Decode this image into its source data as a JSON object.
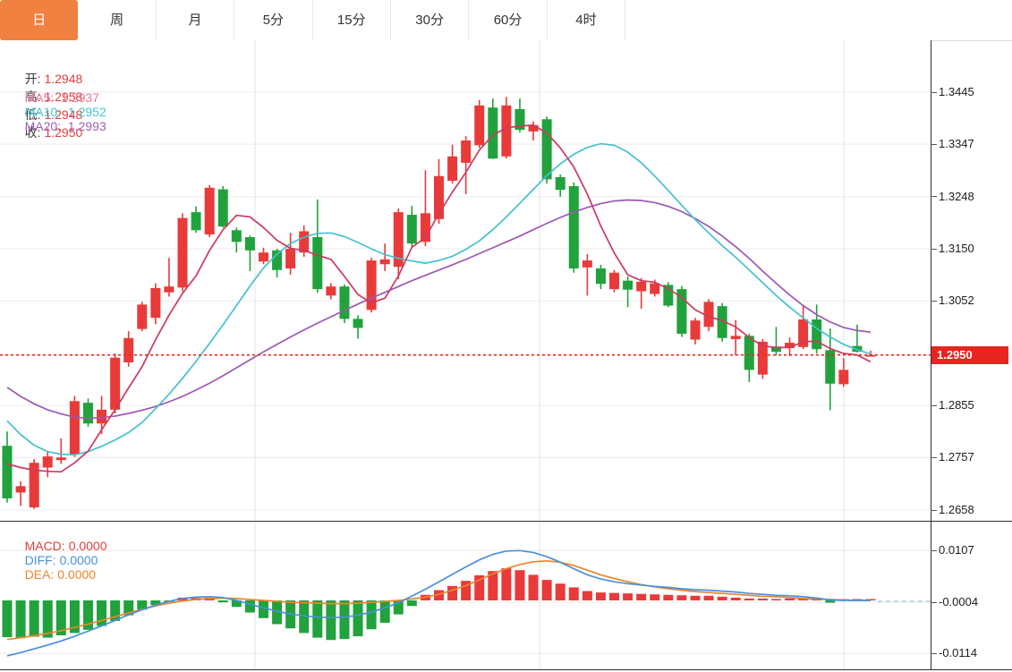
{
  "tabs": [
    {
      "label": "日",
      "active": true
    },
    {
      "label": "周",
      "active": false
    },
    {
      "label": "月",
      "active": false
    },
    {
      "label": "5分",
      "active": false
    },
    {
      "label": "15分",
      "active": false
    },
    {
      "label": "30分",
      "active": false
    },
    {
      "label": "60分",
      "active": false
    },
    {
      "label": "4时",
      "active": false
    }
  ],
  "quote": {
    "open_label": "开:",
    "open": "1.2948",
    "high_label": "高:",
    "high": "1.2958",
    "low_label": "低:",
    "low": "1.2948",
    "close_label": "收:",
    "close": "1.2950"
  },
  "ma_header": {
    "ma5_label": "MA5:",
    "ma5": "1.2937",
    "ma10_label": "MA10:",
    "ma10": "1.2952",
    "ma20_label": "MA20:",
    "ma20": "1.2993"
  },
  "macd_header": {
    "macd_label": "MACD:",
    "macd": "0.0000",
    "diff_label": "DIFF:",
    "diff": "0.0000",
    "dea_label": "DEA:",
    "dea": "0.0000"
  },
  "current_price_badge": "1.2950",
  "colors": {
    "tab_active_bg": "#f08140",
    "up": "#e93a3a",
    "down": "#21a23c",
    "ma5_line": "#cc3a60",
    "ma10_line": "#45c0cf",
    "ma20_line": "#9d58b4",
    "ma5_text": "#e8799a",
    "ma10_text": "#43c5cf",
    "ma20_text": "#a05fb5",
    "quote_value": "#e0403a",
    "diff_line": "#4a90d9",
    "dea_line": "#e8862e",
    "badge_bg": "#e8251f",
    "dotted_price_line": "#ee2222",
    "dashed_tail": "#a8cdea",
    "grid": "#ececec"
  },
  "chart_data": {
    "type": "candlestick_with_macd",
    "description": "Daily FX candlestick chart (Chinese convention: red=up, green=down) with MA5/MA10/MA20 overlays and MACD sub-panel",
    "main": {
      "y_ticks": [
        1.3445,
        1.3347,
        1.3248,
        1.315,
        1.3052,
        1.2855,
        1.2757,
        1.2658
      ],
      "ylim": [
        1.2601,
        1.3543
      ],
      "current_price": 1.295,
      "time_gridlines_x": [
        285,
        603,
        943
      ],
      "ohlc": [
        [
          1.2779,
          1.2806,
          1.2672,
          1.268
        ],
        [
          1.2691,
          1.2712,
          1.2666,
          1.2703
        ],
        [
          1.2663,
          1.2754,
          1.266,
          1.2747
        ],
        [
          1.2738,
          1.2768,
          1.272,
          1.2759
        ],
        [
          1.2752,
          1.2793,
          1.2745,
          1.2757
        ],
        [
          1.2763,
          1.2873,
          1.2758,
          1.2863
        ],
        [
          1.286,
          1.2868,
          1.2815,
          1.2821
        ],
        [
          1.2821,
          1.2873,
          1.2801,
          1.2847
        ],
        [
          1.2847,
          1.2953,
          1.284,
          1.2945
        ],
        [
          1.2936,
          1.2995,
          1.2928,
          1.2982
        ],
        [
          1.2999,
          1.305,
          1.2995,
          1.3045
        ],
        [
          1.302,
          1.3085,
          1.3008,
          1.3076
        ],
        [
          1.3068,
          1.3133,
          1.306,
          1.3079
        ],
        [
          1.3077,
          1.3217,
          1.307,
          1.3208
        ],
        [
          1.3219,
          1.323,
          1.318,
          1.3185
        ],
        [
          1.3177,
          1.327,
          1.3172,
          1.3265
        ],
        [
          1.3262,
          1.3268,
          1.319,
          1.3192
        ],
        [
          1.3185,
          1.319,
          1.3143,
          1.3163
        ],
        [
          1.3172,
          1.3175,
          1.3108,
          1.3147
        ],
        [
          1.3126,
          1.3152,
          1.3121,
          1.3143
        ],
        [
          1.3147,
          1.315,
          1.3096,
          1.311
        ],
        [
          1.3113,
          1.318,
          1.3101,
          1.315
        ],
        [
          1.3143,
          1.3194,
          1.3135,
          1.3183
        ],
        [
          1.3172,
          1.3243,
          1.3067,
          1.3074
        ],
        [
          1.3062,
          1.3085,
          1.3055,
          1.3079
        ],
        [
          1.3079,
          1.3083,
          1.301,
          1.3018
        ],
        [
          1.3018,
          1.3025,
          1.2981,
          1.3001
        ],
        [
          1.3035,
          1.3133,
          1.303,
          1.3128
        ],
        [
          1.3121,
          1.316,
          1.3108,
          1.313
        ],
        [
          1.3116,
          1.3226,
          1.3093,
          1.3219
        ],
        [
          1.3214,
          1.3231,
          1.3152,
          1.316
        ],
        [
          1.3163,
          1.3298,
          1.3155,
          1.3217
        ],
        [
          1.3206,
          1.3319,
          1.3197,
          1.3287
        ],
        [
          1.3278,
          1.3346,
          1.3273,
          1.3324
        ],
        [
          1.3312,
          1.3362,
          1.3253,
          1.3354
        ],
        [
          1.3345,
          1.343,
          1.334,
          1.342
        ],
        [
          1.3416,
          1.3433,
          1.3319,
          1.332
        ],
        [
          1.3324,
          1.3436,
          1.332,
          1.342
        ],
        [
          1.3413,
          1.3433,
          1.3369,
          1.3374
        ],
        [
          1.3371,
          1.339,
          1.3354,
          1.3383
        ],
        [
          1.3394,
          1.3399,
          1.3273,
          1.3281
        ],
        [
          1.3285,
          1.329,
          1.3248,
          1.3261
        ],
        [
          1.3268,
          1.3275,
          1.3105,
          1.3113
        ],
        [
          1.3115,
          1.314,
          1.3062,
          1.3128
        ],
        [
          1.3113,
          1.312,
          1.3074,
          1.3084
        ],
        [
          1.3074,
          1.311,
          1.3068,
          1.3105
        ],
        [
          1.309,
          1.3098,
          1.304,
          1.3073
        ],
        [
          1.307,
          1.3095,
          1.3037,
          1.3088
        ],
        [
          1.3065,
          1.3092,
          1.306,
          1.3085
        ],
        [
          1.3082,
          1.3087,
          1.304,
          1.3043
        ],
        [
          1.3074,
          1.308,
          1.2984,
          1.299
        ],
        [
          1.2979,
          1.302,
          1.297,
          1.3015
        ],
        [
          1.3003,
          1.3055,
          1.2995,
          1.305
        ],
        [
          1.3042,
          1.3048,
          1.2975,
          1.2982
        ],
        [
          1.298,
          1.3016,
          1.2949,
          1.2986
        ],
        [
          1.2986,
          1.299,
          1.2899,
          1.2922
        ],
        [
          1.2913,
          1.298,
          1.2905,
          1.2975
        ],
        [
          1.2966,
          1.3003,
          1.2949,
          1.2956
        ],
        [
          1.2963,
          1.2983,
          1.2948,
          1.2973
        ],
        [
          1.2965,
          1.3042,
          1.2961,
          1.3017
        ],
        [
          1.3017,
          1.3045,
          1.2953,
          1.2961
        ],
        [
          1.2959,
          1.3,
          1.2846,
          1.2896
        ],
        [
          1.2895,
          1.2944,
          1.289,
          1.2922
        ],
        [
          1.2967,
          1.3007,
          1.2955,
          1.2956
        ],
        [
          1.2948,
          1.2958,
          1.2948,
          1.295
        ]
      ],
      "ma5": [
        1.2745,
        1.2738,
        1.2733,
        1.2731,
        1.273,
        1.2747,
        1.2769,
        1.2809,
        1.2847,
        1.2888,
        1.2928,
        1.2979,
        1.3025,
        1.3066,
        1.3099,
        1.3147,
        1.3186,
        1.3213,
        1.321,
        1.319,
        1.3166,
        1.3151,
        1.3147,
        1.3138,
        1.313,
        1.3098,
        1.3064,
        1.3048,
        1.3057,
        1.3099,
        1.3153,
        1.3171,
        1.3216,
        1.3257,
        1.3294,
        1.3336,
        1.3364,
        1.3378,
        1.3381,
        1.3383,
        1.3368,
        1.334,
        1.3304,
        1.3253,
        1.3193,
        1.3142,
        1.3101,
        1.309,
        1.3087,
        1.3075,
        1.3058,
        1.3035,
        1.3022,
        1.3015,
        1.3003,
        1.2983,
        1.2967,
        1.2964,
        1.2964,
        1.2975,
        1.2976,
        1.2962,
        1.2953,
        1.295,
        1.2937
      ],
      "ma10": [
        1.2826,
        1.28,
        1.278,
        1.2768,
        1.2763,
        1.2762,
        1.2768,
        1.2778,
        1.279,
        1.2804,
        1.2823,
        1.2849,
        1.2876,
        1.2906,
        1.2938,
        1.2972,
        1.3007,
        1.3043,
        1.308,
        1.3114,
        1.314,
        1.316,
        1.3172,
        1.3179,
        1.318,
        1.3173,
        1.3162,
        1.315,
        1.3139,
        1.3132,
        1.3127,
        1.3123,
        1.3128,
        1.3136,
        1.3149,
        1.3165,
        1.3186,
        1.321,
        1.3236,
        1.3262,
        1.3288,
        1.331,
        1.3328,
        1.3341,
        1.3348,
        1.3345,
        1.3332,
        1.3312,
        1.3287,
        1.326,
        1.3232,
        1.3205,
        1.318,
        1.3156,
        1.3134,
        1.311,
        1.3086,
        1.3062,
        1.304,
        1.302,
        1.3,
        1.2984,
        1.297,
        1.296,
        1.2952
      ],
      "ma20": [
        1.2889,
        1.2872,
        1.2858,
        1.2847,
        1.2839,
        1.2833,
        1.2831,
        1.2832,
        1.2835,
        1.284,
        1.2846,
        1.2853,
        1.2862,
        1.2872,
        1.2884,
        1.2897,
        1.2911,
        1.2926,
        1.2941,
        1.2956,
        1.297,
        1.2984,
        1.2997,
        1.301,
        1.3022,
        1.3034,
        1.3046,
        1.3057,
        1.3068,
        1.3079,
        1.309,
        1.31,
        1.311,
        1.312,
        1.313,
        1.3141,
        1.3152,
        1.3163,
        1.3174,
        1.3186,
        1.3198,
        1.3209,
        1.3219,
        1.3228,
        1.3235,
        1.324,
        1.3242,
        1.3241,
        1.3237,
        1.323,
        1.322,
        1.3207,
        1.3192,
        1.3174,
        1.3154,
        1.3132,
        1.3108,
        1.3085,
        1.3063,
        1.3043,
        1.3026,
        1.3012,
        1.3002,
        1.2996,
        1.2993
      ]
    },
    "macd": {
      "y_ticks": [
        0.0107,
        -0.0004,
        -0.0114
      ],
      "time_gridlines_x": [
        285,
        603,
        943
      ],
      "hist": [
        -0.0079,
        -0.0081,
        -0.0078,
        -0.008,
        -0.0075,
        -0.007,
        -0.0063,
        -0.0055,
        -0.0044,
        -0.0032,
        -0.002,
        -0.001,
        -0.0003,
        0.0006,
        0.0005,
        0.0006,
        -0.0004,
        -0.0014,
        -0.0026,
        -0.0038,
        -0.0051,
        -0.006,
        -0.007,
        -0.008,
        -0.0085,
        -0.0083,
        -0.0077,
        -0.0062,
        -0.0048,
        -0.003,
        -0.0012,
        0.0012,
        0.0022,
        0.0031,
        0.0042,
        0.0054,
        0.0063,
        0.0069,
        0.0065,
        0.0055,
        0.0044,
        0.0036,
        0.0028,
        0.002,
        0.0017,
        0.0016,
        0.0015,
        0.0014,
        0.0013,
        0.0012,
        0.0011,
        0.001,
        0.001,
        0.0008,
        0.0006,
        0.0004,
        0.0004,
        0.0003,
        0.0004,
        0.0004,
        0.0002,
        -0.0005,
        0.0002,
        0.0001,
        0.0
      ],
      "diff": [
        -0.0119,
        -0.0112,
        -0.0104,
        -0.0096,
        -0.0087,
        -0.0077,
        -0.0066,
        -0.0055,
        -0.0043,
        -0.0031,
        -0.002,
        -0.001,
        -0.0002,
        0.0004,
        0.0007,
        0.0008,
        0.0006,
        0.0,
        -0.0008,
        -0.0016,
        -0.0023,
        -0.0029,
        -0.0033,
        -0.0036,
        -0.0037,
        -0.0036,
        -0.0032,
        -0.0025,
        -0.0016,
        -0.0005,
        0.0009,
        0.0024,
        0.004,
        0.0056,
        0.0072,
        0.0087,
        0.0099,
        0.0106,
        0.0107,
        0.0103,
        0.0094,
        0.0082,
        0.0068,
        0.0055,
        0.0046,
        0.004,
        0.0036,
        0.0033,
        0.003,
        0.0028,
        0.0025,
        0.0023,
        0.0022,
        0.002,
        0.0018,
        0.0015,
        0.0013,
        0.0011,
        0.001,
        0.0008,
        0.0005,
        0.0001,
        0.0,
        0.0,
        0.0
      ],
      "dea": [
        -0.0084,
        -0.008,
        -0.0076,
        -0.0071,
        -0.0065,
        -0.0058,
        -0.0051,
        -0.0043,
        -0.0035,
        -0.0027,
        -0.0019,
        -0.0012,
        -0.0006,
        -0.0001,
        0.0002,
        0.0004,
        0.0005,
        0.0004,
        0.0002,
        0.0,
        -0.0002,
        -0.0004,
        -0.0005,
        -0.0006,
        -0.0007,
        -0.0007,
        -0.0006,
        -0.0004,
        -0.0002,
        0.0,
        0.0003,
        0.0007,
        0.0013,
        0.0022,
        0.0032,
        0.0044,
        0.0057,
        0.0068,
        0.0077,
        0.0083,
        0.0085,
        0.0082,
        0.0075,
        0.0065,
        0.0055,
        0.0047,
        0.004,
        0.0034,
        0.0029,
        0.0025,
        0.0022,
        0.0019,
        0.0017,
        0.0015,
        0.0013,
        0.0011,
        0.0009,
        0.0008,
        0.0006,
        0.0004,
        0.0003,
        0.0002,
        0.0001,
        0.0,
        0.0
      ]
    }
  }
}
